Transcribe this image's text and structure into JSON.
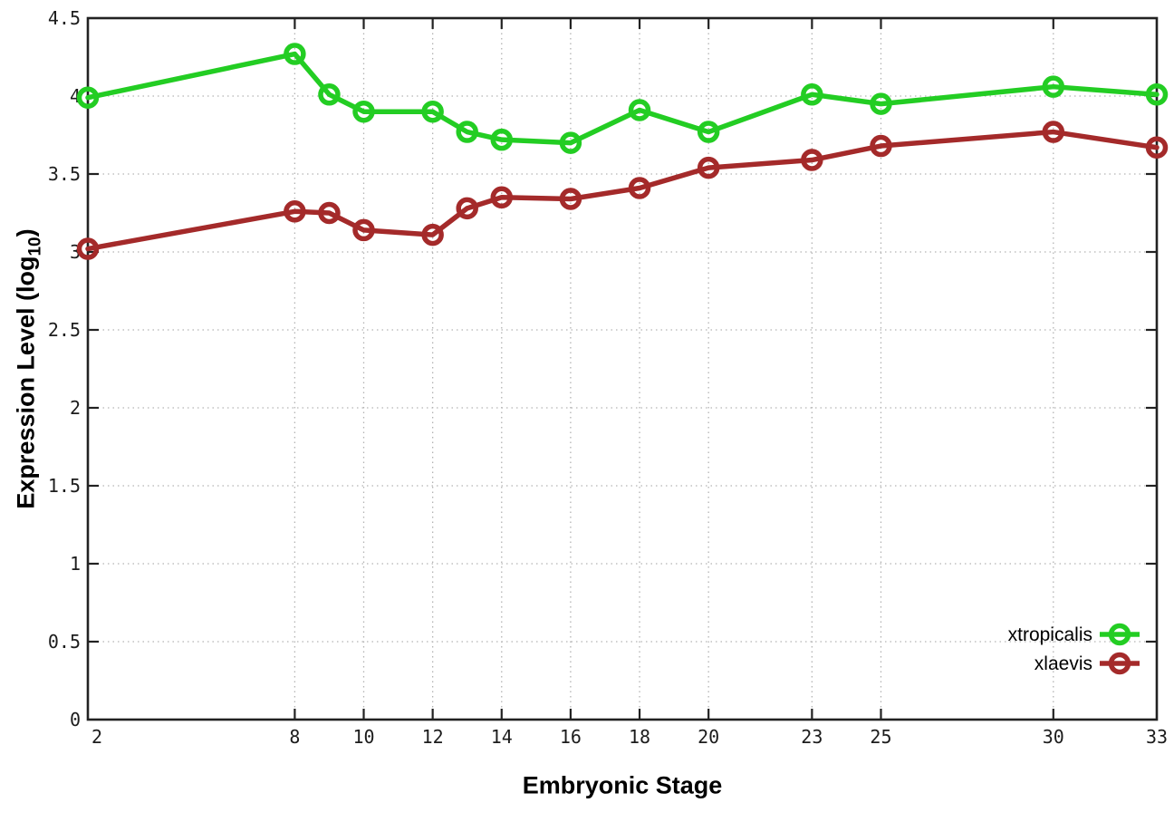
{
  "chart_data": {
    "type": "line",
    "title": "",
    "xlabel": "Embryonic Stage",
    "ylabel": {
      "prefix": "Expression Level (log",
      "subscript": "10",
      "suffix": ")"
    },
    "x": [
      2,
      8,
      9,
      10,
      12,
      13,
      14,
      16,
      18,
      20,
      23,
      25,
      30,
      33
    ],
    "series": [
      {
        "name": "xtropicalis",
        "color": "#23cd23",
        "values": [
          3.99,
          4.27,
          4.01,
          3.9,
          3.9,
          3.77,
          3.72,
          3.7,
          3.91,
          3.77,
          4.01,
          3.95,
          4.06,
          4.01
        ]
      },
      {
        "name": "xlaevis",
        "color": "#a42a2a",
        "values": [
          3.02,
          3.26,
          3.25,
          3.14,
          3.11,
          3.28,
          3.35,
          3.34,
          3.41,
          3.54,
          3.59,
          3.68,
          3.77,
          3.67
        ]
      }
    ],
    "xlim": [
      2,
      33
    ],
    "ylim": [
      0,
      4.5
    ],
    "xticks": {
      "values": [
        2,
        8,
        10,
        12,
        14,
        16,
        18,
        20,
        23,
        25,
        30,
        33
      ],
      "labels": [
        "2",
        "8",
        "10",
        "12",
        "14",
        "16",
        "18",
        "20",
        "23",
        "25",
        "30",
        "33"
      ]
    },
    "yticks": {
      "values": [
        0,
        0.5,
        1,
        1.5,
        2,
        2.5,
        3,
        3.5,
        4,
        4.5
      ],
      "labels": [
        "0",
        "0.5",
        "1",
        "1.5",
        "2",
        "2.5",
        "3",
        "3.5",
        "4",
        "4.5"
      ]
    },
    "grid": true,
    "legend_position": "bottom-right",
    "marker": "open-circle"
  },
  "colors": {
    "background": "#ffffff",
    "border": "#222222",
    "grid": "#b3b3b3",
    "tick_label": "#1c1c1c",
    "legend_text": "#000000"
  }
}
